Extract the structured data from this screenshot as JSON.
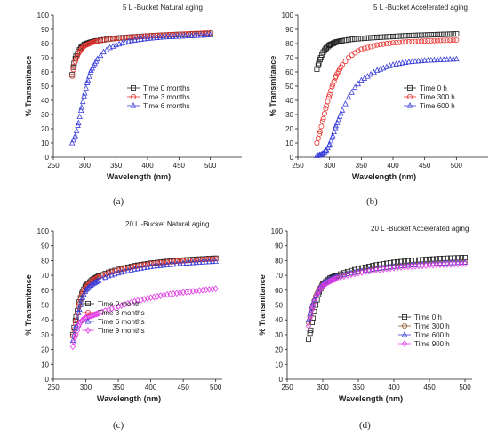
{
  "figure": {
    "panels": [
      {
        "label": "(a)",
        "title": "5 L -Bucket Natural aging"
      },
      {
        "label": "(b)",
        "title": "5 L -Bucket Accelerated aging"
      },
      {
        "label": "(c)",
        "title": "20 L -Bucket Natural aging"
      },
      {
        "label": "(d)",
        "title": "20 L -Bucket Accelerated aging"
      }
    ]
  },
  "chart_data": [
    {
      "type": "scatter",
      "title": "5 L -Bucket Natural aging",
      "xlabel": "Wavelength (nm)",
      "ylabel": "% Transmitance",
      "xlim": [
        250,
        550
      ],
      "ylim": [
        0,
        100
      ],
      "xticks": [
        250,
        300,
        350,
        400,
        450,
        500
      ],
      "yticks": [
        0,
        10,
        20,
        30,
        40,
        50,
        60,
        70,
        80,
        90,
        100
      ],
      "legend_position": "center-right",
      "series": [
        {
          "name": "Time 0 months",
          "color": "#222222",
          "marker": "square",
          "x": [
            280,
            283,
            286,
            290,
            295,
            300,
            310,
            320,
            335,
            350,
            375,
            400,
            425,
            450,
            475,
            500
          ],
          "y": [
            58,
            66,
            71,
            74.5,
            77.5,
            79.5,
            81,
            82,
            83,
            83.8,
            84.6,
            85.3,
            85.9,
            86.4,
            86.8,
            87.2
          ]
        },
        {
          "name": "Time 3 months",
          "color": "#e8332e",
          "marker": "circle",
          "x": [
            280,
            283,
            286,
            290,
            295,
            300,
            310,
            320,
            335,
            350,
            375,
            400,
            425,
            450,
            475,
            500
          ],
          "y": [
            57,
            64,
            69,
            73,
            76.5,
            78.5,
            80.5,
            81.8,
            82.8,
            83.6,
            84.6,
            85.4,
            86,
            86.6,
            87.1,
            87.6
          ]
        },
        {
          "name": "Time 6 months",
          "color": "#3b3fd9",
          "marker": "triangle",
          "x": [
            280,
            285,
            290,
            295,
            300,
            305,
            310,
            320,
            330,
            340,
            350,
            375,
            400,
            425,
            450,
            475,
            500
          ],
          "y": [
            10,
            15,
            24,
            35,
            45,
            54,
            61,
            69,
            74,
            77,
            79,
            82,
            83.5,
            84.5,
            85,
            85.5,
            86
          ]
        }
      ]
    },
    {
      "type": "scatter",
      "title": "5 L -Bucket Accelerated aging",
      "xlabel": "Wavelength (nm)",
      "ylabel": "% Transmitance",
      "xlim": [
        250,
        550
      ],
      "ylim": [
        0,
        100
      ],
      "xticks": [
        250,
        300,
        350,
        400,
        450,
        500
      ],
      "yticks": [
        0,
        10,
        20,
        30,
        40,
        50,
        60,
        70,
        80,
        90,
        100
      ],
      "legend_position": "center-right",
      "series": [
        {
          "name": "Time 0 h",
          "color": "#222222",
          "marker": "square",
          "x": [
            280,
            283,
            286,
            290,
            295,
            300,
            310,
            320,
            335,
            350,
            375,
            400,
            425,
            450,
            475,
            500
          ],
          "y": [
            62,
            66,
            70,
            74,
            77,
            79,
            81,
            82,
            83,
            83.6,
            84.4,
            85,
            85.6,
            86,
            86.4,
            86.8
          ]
        },
        {
          "name": "Time 300 h",
          "color": "#e8332e",
          "marker": "circle",
          "x": [
            280,
            285,
            290,
            295,
            300,
            305,
            310,
            320,
            330,
            340,
            350,
            375,
            400,
            425,
            450,
            475,
            500
          ],
          "y": [
            10,
            18,
            27,
            36,
            44,
            51,
            57,
            65,
            70,
            73.5,
            76,
            79,
            80.5,
            81.3,
            81.8,
            82.2,
            82.5
          ]
        },
        {
          "name": "Time 600 h",
          "color": "#3b3fd9",
          "marker": "triangle",
          "x": [
            280,
            285,
            290,
            295,
            300,
            305,
            310,
            320,
            330,
            340,
            350,
            375,
            400,
            425,
            450,
            475,
            500
          ],
          "y": [
            1,
            1.5,
            2.5,
            5,
            9,
            15,
            22,
            33,
            42,
            49,
            54,
            61,
            65,
            67,
            68,
            68.5,
            69
          ]
        }
      ]
    },
    {
      "type": "scatter",
      "title": "20 L -Bucket Natural aging",
      "xlabel": "Wavelength (nm)",
      "ylabel": "% Transmitance",
      "xlim": [
        250,
        510
      ],
      "ylim": [
        0,
        100
      ],
      "xticks": [
        250,
        300,
        350,
        400,
        450,
        500
      ],
      "yticks": [
        0,
        10,
        20,
        30,
        40,
        50,
        60,
        70,
        80,
        90,
        100
      ],
      "legend_position": "bottom-right",
      "series": [
        {
          "name": "Time 0 month",
          "color": "#222222",
          "marker": "square",
          "x": [
            280,
            285,
            290,
            295,
            300,
            310,
            320,
            335,
            350,
            375,
            400,
            425,
            450,
            475,
            500
          ],
          "y": [
            30,
            42,
            52,
            59,
            63,
            67,
            69.5,
            72,
            74,
            76.5,
            78.2,
            79.4,
            80.3,
            81,
            81.6
          ]
        },
        {
          "name": "Time 3 months",
          "color": "#e8332e",
          "marker": "circle",
          "x": [
            280,
            285,
            290,
            295,
            300,
            310,
            320,
            335,
            350,
            375,
            400,
            425,
            450,
            475,
            500
          ],
          "y": [
            29,
            40,
            51,
            58,
            62,
            66.5,
            69,
            71.5,
            73.5,
            76,
            77.8,
            79,
            79.9,
            80.6,
            81.2
          ]
        },
        {
          "name": "Time 6  months",
          "color": "#3b3fd9",
          "marker": "triangle",
          "x": [
            280,
            285,
            290,
            295,
            300,
            310,
            320,
            335,
            350,
            375,
            400,
            425,
            450,
            475,
            500
          ],
          "y": [
            26,
            36,
            47,
            55,
            60,
            64,
            66.5,
            69.5,
            71.5,
            74,
            75.8,
            77,
            78,
            78.8,
            79.4
          ]
        },
        {
          "name": "Time 9 months",
          "color": "#e23de6",
          "marker": "diamond",
          "x": [
            280,
            285,
            290,
            295,
            300,
            310,
            320,
            335,
            350,
            375,
            400,
            425,
            450,
            475,
            500
          ],
          "y": [
            22,
            30,
            37,
            40,
            41.5,
            43,
            44.5,
            47,
            49,
            52.5,
            55,
            57,
            58.5,
            59.8,
            61
          ]
        }
      ]
    },
    {
      "type": "scatter",
      "title": "20 L -Bucket Accelerated aging",
      "xlabel": "Wavelength (nm)",
      "ylabel": "% Transmitance",
      "xlim": [
        250,
        510
      ],
      "ylim": [
        0,
        100
      ],
      "xticks": [
        250,
        300,
        350,
        400,
        450,
        500
      ],
      "yticks": [
        0,
        10,
        20,
        30,
        40,
        50,
        60,
        70,
        80,
        90,
        100
      ],
      "legend_position": "center-right",
      "series": [
        {
          "name": "Time 0 h",
          "color": "#222222",
          "marker": "square",
          "x": [
            280,
            283,
            286,
            290,
            295,
            300,
            310,
            320,
            335,
            350,
            375,
            400,
            425,
            450,
            475,
            500
          ],
          "y": [
            27,
            33,
            41,
            50,
            59,
            64,
            68,
            70,
            72.5,
            74.5,
            77,
            78.8,
            80,
            80.9,
            81.6,
            82
          ]
        },
        {
          "name": "Time 300 h",
          "color": "#8b5a2b",
          "marker": "circle",
          "x": [
            280,
            283,
            286,
            290,
            295,
            300,
            310,
            320,
            335,
            350,
            375,
            400,
            425,
            450,
            475,
            500
          ],
          "y": [
            38,
            44,
            50,
            56,
            61,
            64,
            67,
            69,
            71,
            72.5,
            74.5,
            76,
            77.2,
            78,
            78.6,
            79
          ]
        },
        {
          "name": "Time 600 h",
          "color": "#3b3fd9",
          "marker": "triangle",
          "x": [
            280,
            283,
            286,
            290,
            295,
            300,
            310,
            320,
            335,
            350,
            375,
            400,
            425,
            450,
            475,
            500
          ],
          "y": [
            40,
            46,
            51,
            56,
            61,
            64,
            67,
            69,
            71,
            72.5,
            74.5,
            76,
            77,
            77.8,
            78.4,
            78.8
          ]
        },
        {
          "name": "Time 900 h",
          "color": "#e23de6",
          "marker": "diamond",
          "x": [
            280,
            283,
            286,
            290,
            295,
            300,
            310,
            320,
            335,
            350,
            375,
            400,
            425,
            450,
            475,
            500
          ],
          "y": [
            36,
            43,
            49,
            55,
            60,
            63,
            66,
            68,
            70,
            71.5,
            73.5,
            75,
            76,
            76.8,
            77.4,
            77.8
          ]
        }
      ]
    }
  ]
}
